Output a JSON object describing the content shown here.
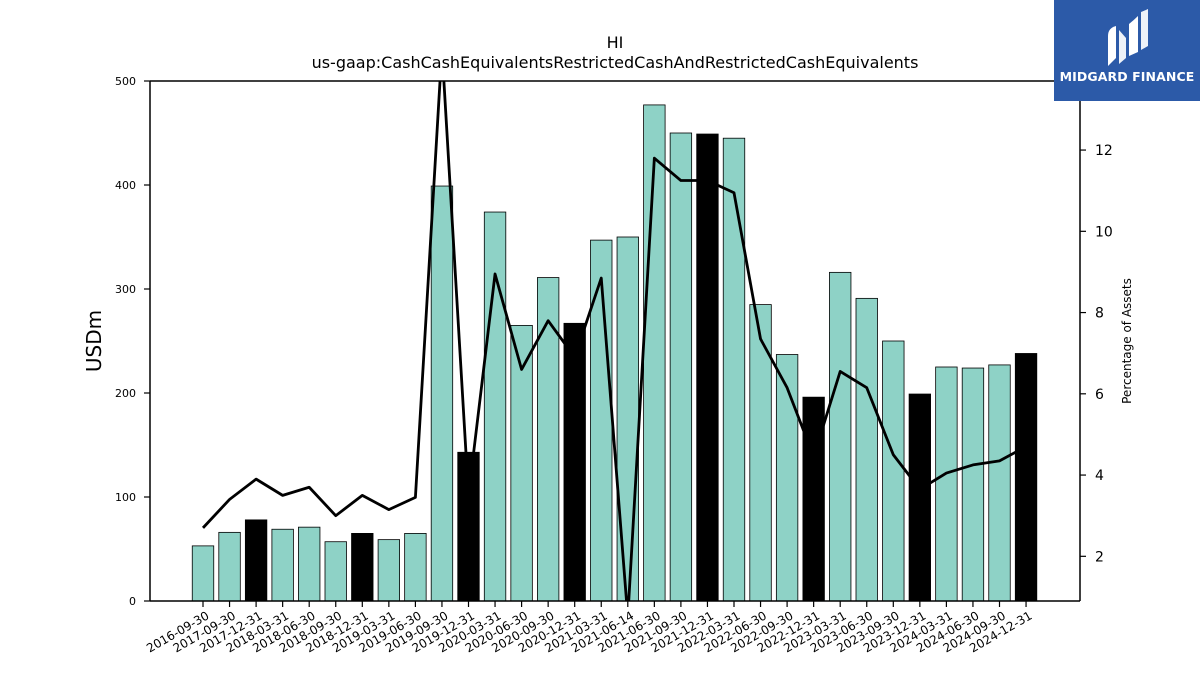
{
  "chart_data": {
    "type": "bar",
    "title": "HI",
    "subtitle": "us-gaap:CashCashEquivalentsRestrictedCashAndRestrictedCashEquivalents",
    "ylabel": "USDm",
    "y2label": "Percentage of Assets",
    "ylim": [
      0,
      500
    ],
    "y2lim": [
      0.9,
      13.7
    ],
    "yticks": [
      0,
      100,
      200,
      300,
      400,
      500
    ],
    "y2ticks": [
      2,
      4,
      6,
      8,
      10,
      12
    ],
    "categories": [
      "2016-09-30",
      "2017-09-30",
      "2017-12-31",
      "2018-03-31",
      "2018-06-30",
      "2018-09-30",
      "2018-12-31",
      "2019-03-31",
      "2019-06-30",
      "2019-09-30",
      "2019-12-31",
      "2020-03-31",
      "2020-06-30",
      "2020-09-30",
      "2020-12-31",
      "2021-03-31",
      "2021-06-14",
      "2021-06-30",
      "2021-09-30",
      "2021-12-31",
      "2022-03-31",
      "2022-06-30",
      "2022-09-30",
      "2022-12-31",
      "2023-03-31",
      "2023-06-30",
      "2023-09-30",
      "2023-12-31",
      "2024-03-31",
      "2024-06-30",
      "2024-09-30",
      "2024-12-31"
    ],
    "series": [
      {
        "type": "bar",
        "values": [
          53,
          66,
          78,
          69,
          71,
          57,
          65,
          59,
          65,
          399,
          143,
          374,
          265,
          311,
          267,
          347,
          350,
          477,
          450,
          449,
          445,
          285,
          237,
          196,
          316,
          291,
          250,
          199,
          225,
          224,
          227,
          238
        ],
        "year_end_highlight": [
          false,
          false,
          true,
          false,
          false,
          false,
          true,
          false,
          false,
          false,
          true,
          false,
          false,
          false,
          true,
          false,
          false,
          false,
          false,
          true,
          false,
          false,
          false,
          true,
          false,
          false,
          false,
          true,
          false,
          false,
          false,
          true
        ]
      },
      {
        "type": "line",
        "axis": "right",
        "values": [
          2.7,
          3.4,
          3.9,
          3.5,
          3.7,
          3.0,
          3.5,
          3.15,
          3.45,
          14.5,
          3.5,
          8.95,
          6.6,
          7.8,
          6.9,
          8.85,
          0.5,
          11.8,
          11.25,
          11.25,
          10.95,
          7.35,
          6.15,
          4.45,
          6.55,
          6.15,
          4.5,
          3.65,
          4.05,
          4.25,
          4.35,
          4.7
        ]
      }
    ],
    "grid": false,
    "legend": "none"
  },
  "colors": {
    "bar": "#8ed2c6",
    "bar_highlight": "#000000",
    "line": "#000000",
    "logo_bg": "#2c5aa8"
  },
  "logo": {
    "text": "MIDGARD FINANCE",
    "icon": "midgard-logo-icon"
  }
}
